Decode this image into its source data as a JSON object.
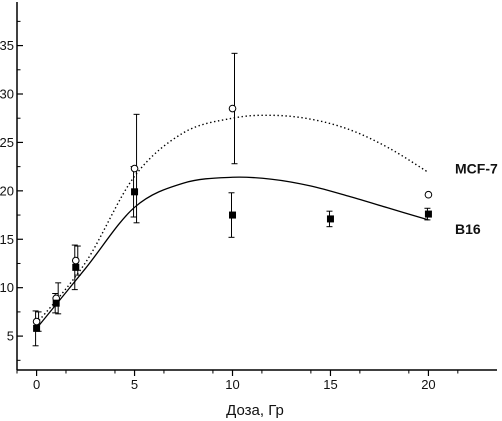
{
  "chart_data": {
    "type": "scatter",
    "title": "",
    "xlabel": "Доза, Гр",
    "ylabel": "",
    "xlim": [
      -1,
      23.5
    ],
    "ylim": [
      1.5,
      39.5
    ],
    "xticks": [
      0,
      5,
      10,
      15,
      20
    ],
    "yticks": [
      5,
      10,
      15,
      20,
      25,
      30,
      35
    ],
    "grid": false,
    "series": [
      {
        "name": "MCF-7",
        "marker": "open-circle",
        "points": [
          {
            "x": 0,
            "y": 6.5,
            "err": 1.0
          },
          {
            "x": 1,
            "y": 8.9,
            "err": 1.6
          },
          {
            "x": 2,
            "y": 12.8,
            "err": 1.5
          },
          {
            "x": 5,
            "y": 22.3,
            "err": 5.6
          },
          {
            "x": 10,
            "y": 28.5,
            "err": 5.7
          },
          {
            "x": 20,
            "y": 19.6,
            "err": 0.0
          }
        ],
        "fit": {
          "style": "dotted",
          "points": [
            [
              0,
              6.3
            ],
            [
              2.5,
              12.6
            ],
            [
              5,
              21.5
            ],
            [
              7.5,
              26.0
            ],
            [
              10,
              27.5
            ],
            [
              12,
              27.8
            ],
            [
              14,
              27.4
            ],
            [
              16,
              26.3
            ],
            [
              18,
              24.4
            ],
            [
              20,
              21.9
            ]
          ]
        }
      },
      {
        "name": "B16",
        "marker": "filled-square",
        "points": [
          {
            "x": 0,
            "y": 5.8,
            "err": 1.8
          },
          {
            "x": 1,
            "y": 8.4,
            "err": 1.0
          },
          {
            "x": 2,
            "y": 12.1,
            "err": 2.3
          },
          {
            "x": 5,
            "y": 19.9,
            "err": 2.6
          },
          {
            "x": 10,
            "y": 17.5,
            "err": 2.3
          },
          {
            "x": 15,
            "y": 17.1,
            "err": 0.8
          },
          {
            "x": 20,
            "y": 17.6,
            "err": 0.6
          }
        ],
        "fit": {
          "style": "solid",
          "points": [
            [
              0,
              5.8
            ],
            [
              2.5,
              12.0
            ],
            [
              5,
              18.3
            ],
            [
              7.5,
              20.8
            ],
            [
              10,
              21.4
            ],
            [
              12,
              21.2
            ],
            [
              14,
              20.5
            ],
            [
              16,
              19.4
            ],
            [
              18,
              18.2
            ],
            [
              20,
              17.0
            ]
          ]
        }
      }
    ]
  }
}
